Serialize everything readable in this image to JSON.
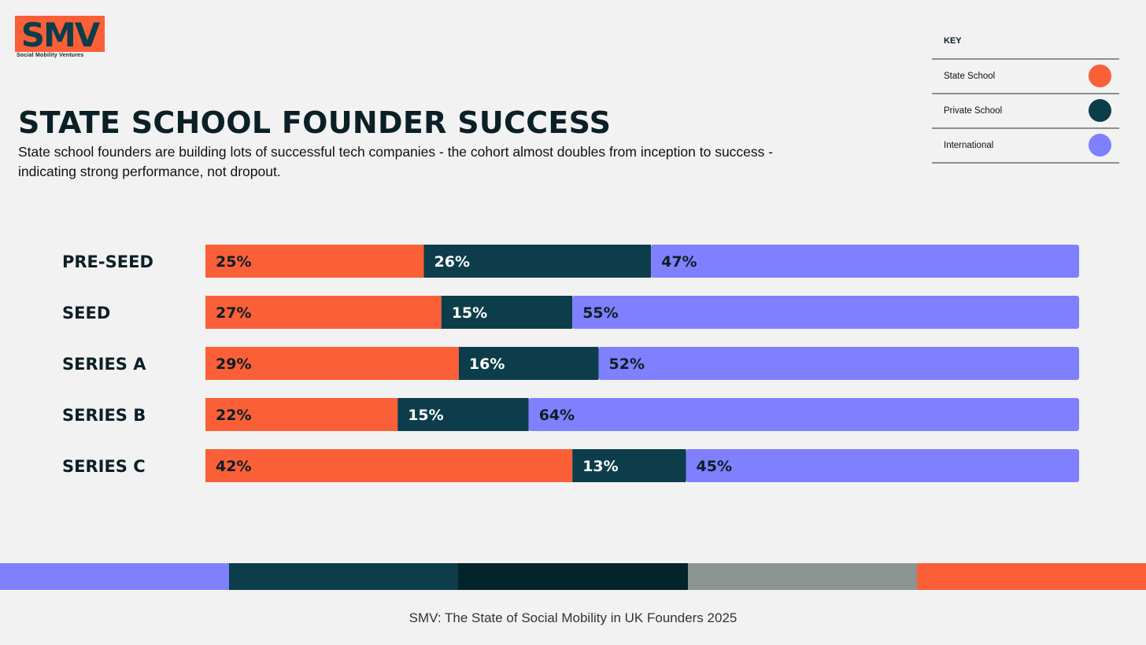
{
  "logo": {
    "text": "SMV",
    "caption": "Social Mobility Ventures"
  },
  "header": {
    "title": "STATE SCHOOL FOUNDER SUCCESS",
    "subtitle": "State school founders are building lots of successful tech companies - the cohort almost doubles from inception to success - indicating strong performance, not dropout."
  },
  "legend": {
    "title": "KEY",
    "items": [
      {
        "label": "State School",
        "color": "#fb5f37"
      },
      {
        "label": "Private School",
        "color": "#0d3d4a"
      },
      {
        "label": "International",
        "color": "#7e80fe"
      }
    ]
  },
  "chart_data": {
    "type": "bar",
    "orientation": "horizontal",
    "stacked": true,
    "title": "STATE SCHOOL FOUNDER SUCCESS",
    "categories": [
      "PRE-SEED",
      "SEED",
      "SERIES A",
      "SERIES B",
      "SERIES C"
    ],
    "series": [
      {
        "name": "State School",
        "color": "#fb5f37",
        "label_color": "#0b1f26",
        "values": [
          25,
          27,
          29,
          22,
          42
        ]
      },
      {
        "name": "Private School",
        "color": "#0d3d4a",
        "label_color": "#ffffff",
        "values": [
          26,
          15,
          16,
          15,
          13
        ]
      },
      {
        "name": "International",
        "color": "#7e80fe",
        "label_color": "#0b1f26",
        "values": [
          47,
          55,
          52,
          64,
          45
        ]
      }
    ],
    "value_suffix": "%",
    "xlim": [
      0,
      100
    ],
    "grid": false,
    "legend": "top-right"
  },
  "footer": {
    "strip_colors": [
      "#7e80fe",
      "#0d3d4a",
      "#03242a",
      "#8b9593",
      "#fb5f37"
    ],
    "text": "SMV: The State of Social Mobility in UK Founders 2025"
  }
}
